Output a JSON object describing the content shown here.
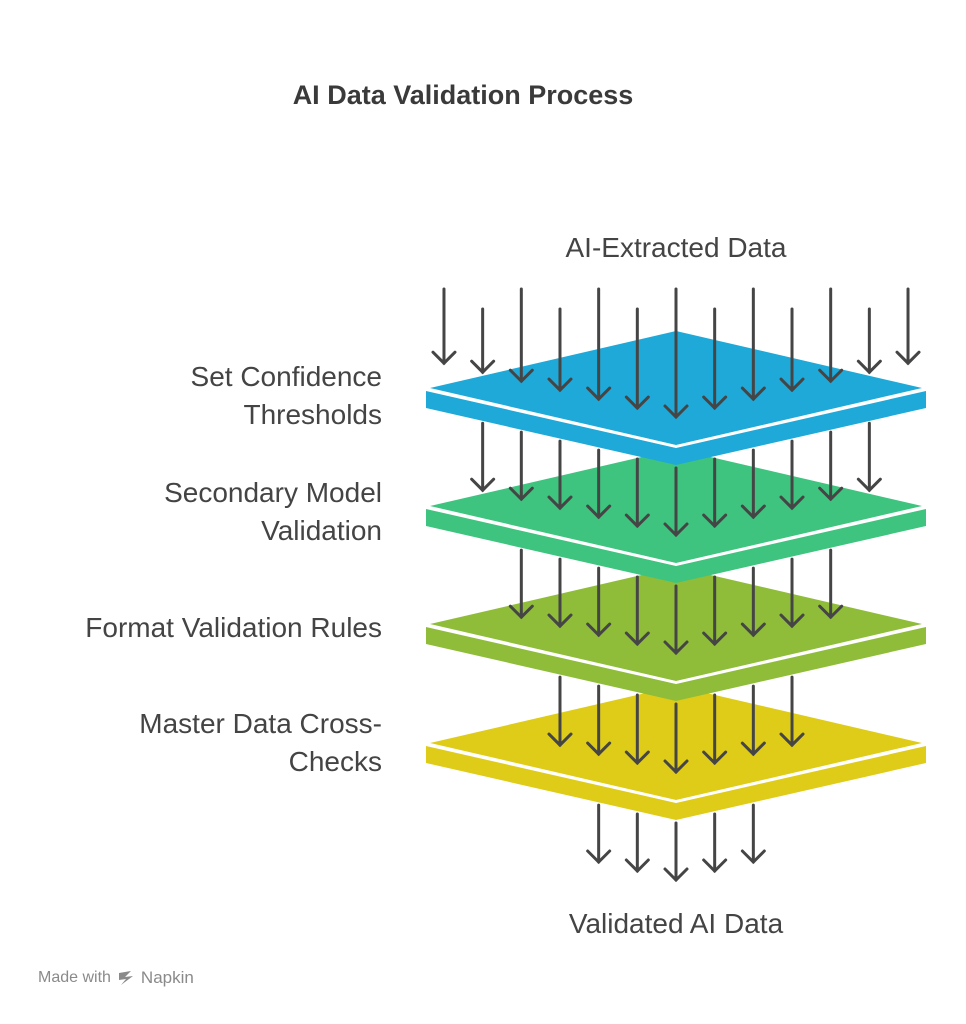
{
  "title": "AI Data Validation Process",
  "input_label": "AI-Extracted Data",
  "output_label": "Validated AI Data",
  "layers": [
    {
      "label_lines": [
        "Set Confidence",
        "Thresholds"
      ],
      "color": "#1fa9d8"
    },
    {
      "label_lines": [
        "Secondary Model",
        "Validation"
      ],
      "color": "#3ec47f"
    },
    {
      "label_lines": [
        "Format Validation Rules"
      ],
      "color": "#8fbd3a"
    },
    {
      "label_lines": [
        "Master Data Cross-",
        "Checks"
      ],
      "color": "#dfcc18"
    }
  ],
  "arrow_color": "#454545",
  "footer": {
    "prefix": "Made with",
    "brand": "Napkin",
    "icon": "napkin-logo-icon"
  }
}
